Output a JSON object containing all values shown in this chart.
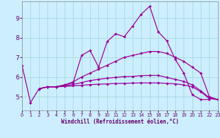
{
  "background_color": "#cceeff",
  "grid_color": "#aadddd",
  "line_color": "#990099",
  "spine_color": "#888888",
  "xlabel": "Windchill (Refroidissement éolien,°C)",
  "xlim": [
    0,
    23
  ],
  "ylim": [
    4.3,
    9.85
  ],
  "yticks": [
    5,
    6,
    7,
    8,
    9
  ],
  "xticks": [
    0,
    1,
    2,
    3,
    4,
    5,
    6,
    7,
    8,
    9,
    10,
    11,
    12,
    13,
    14,
    15,
    16,
    17,
    18,
    19,
    20,
    21,
    22,
    23
  ],
  "series": [
    {
      "x": [
        0,
        1,
        2,
        3,
        4,
        5,
        6,
        7,
        8,
        9,
        10,
        11,
        12,
        13,
        14,
        15,
        16,
        17,
        18,
        19,
        20,
        21,
        22
      ],
      "y": [
        6.6,
        4.7,
        5.4,
        5.5,
        5.5,
        5.6,
        5.7,
        7.1,
        7.35,
        6.5,
        7.8,
        8.2,
        8.05,
        8.6,
        9.2,
        9.6,
        8.3,
        7.85,
        6.9,
        6.2,
        5.1,
        4.85,
        4.85
      ]
    },
    {
      "x": [
        2,
        3,
        4,
        5,
        6,
        7,
        8,
        9,
        10,
        11,
        12,
        13,
        14,
        15,
        16,
        17,
        18,
        19,
        20,
        21,
        22,
        23
      ],
      "y": [
        5.4,
        5.5,
        5.5,
        5.6,
        5.75,
        6.0,
        6.2,
        6.4,
        6.6,
        6.8,
        7.0,
        7.1,
        7.2,
        7.3,
        7.3,
        7.2,
        7.0,
        6.8,
        6.5,
        6.2,
        5.0,
        4.85
      ]
    },
    {
      "x": [
        2,
        3,
        4,
        5,
        6,
        7,
        8,
        9,
        10,
        11,
        12,
        13,
        14,
        15,
        16,
        17,
        18,
        19,
        20,
        21,
        22,
        23
      ],
      "y": [
        5.4,
        5.5,
        5.5,
        5.55,
        5.62,
        5.72,
        5.82,
        5.88,
        5.94,
        5.98,
        6.02,
        6.03,
        6.07,
        6.08,
        6.08,
        5.98,
        5.88,
        5.78,
        5.6,
        5.3,
        4.95,
        4.85
      ]
    },
    {
      "x": [
        2,
        3,
        4,
        5,
        6,
        7,
        8,
        9,
        10,
        11,
        12,
        13,
        14,
        15,
        16,
        17,
        18,
        19,
        20,
        21,
        22,
        23
      ],
      "y": [
        5.4,
        5.5,
        5.5,
        5.52,
        5.55,
        5.58,
        5.61,
        5.63,
        5.65,
        5.67,
        5.68,
        5.69,
        5.7,
        5.7,
        5.7,
        5.68,
        5.65,
        5.6,
        5.5,
        5.25,
        4.9,
        4.85
      ]
    }
  ]
}
